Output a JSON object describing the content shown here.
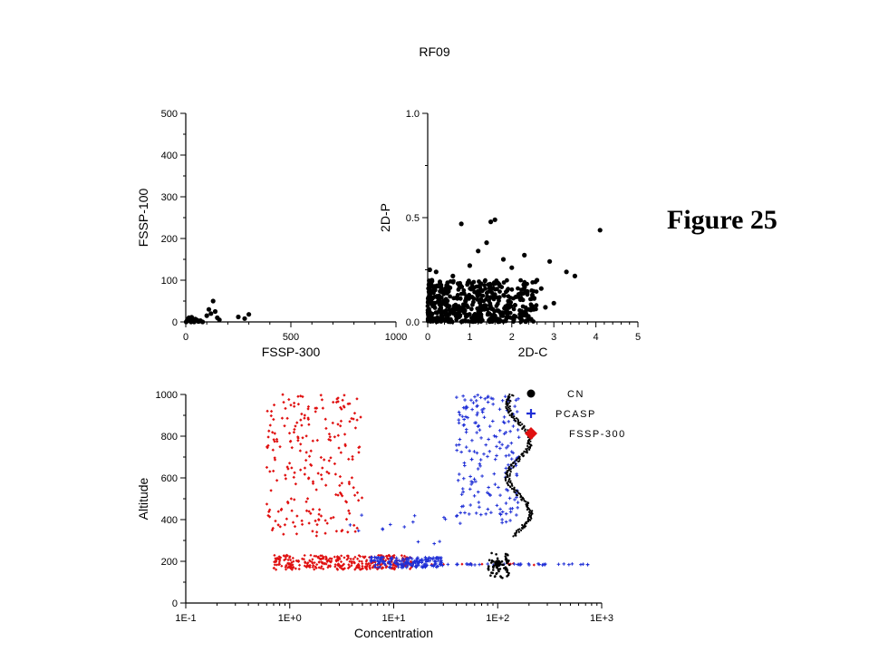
{
  "page": {
    "title": "RF09",
    "figure_label": "Figure 25"
  },
  "colors": {
    "cn": "#000000",
    "pcasp": "#1f2fd6",
    "fssp300": "#e01010",
    "axis": "#000000"
  },
  "chart_data": [
    {
      "id": "fssp",
      "type": "scatter",
      "xlabel": "FSSP-300",
      "ylabel": "FSSP-100",
      "xlim": [
        0,
        1000
      ],
      "ylim": [
        0,
        500
      ],
      "xticks": [
        0,
        500,
        1000
      ],
      "xtick_labels": [
        "0",
        "500",
        "1000"
      ],
      "yticks": [
        0,
        100,
        200,
        300,
        400,
        500
      ],
      "ytick_labels": [
        "0",
        "100",
        "200",
        "300",
        "400",
        "500"
      ],
      "series": [
        {
          "color": "#000000",
          "x": [
            2,
            5,
            8,
            12,
            15,
            20,
            25,
            30,
            35,
            40,
            45,
            55,
            60,
            70,
            80,
            100,
            110,
            120,
            130,
            140,
            150,
            160,
            250,
            280,
            300,
            18,
            28,
            38,
            48,
            65
          ],
          "y": [
            0,
            2,
            5,
            8,
            10,
            3,
            0,
            6,
            2,
            0,
            7,
            4,
            1,
            3,
            0,
            15,
            30,
            20,
            50,
            25,
            10,
            5,
            12,
            8,
            18,
            9,
            11,
            4,
            6,
            2
          ]
        }
      ]
    },
    {
      "id": "twod",
      "type": "scatter",
      "xlabel": "2D-C",
      "ylabel": "2D-P",
      "xlim": [
        0,
        5
      ],
      "ylim": [
        0,
        1
      ],
      "xticks": [
        0,
        1,
        2,
        3,
        4,
        5
      ],
      "xtick_labels": [
        "0",
        "1",
        "2",
        "3",
        "4",
        "5"
      ],
      "yticks": [
        0,
        0.5,
        1.0
      ],
      "ytick_labels": [
        "0.0",
        "0.5",
        "1.0"
      ],
      "series": [
        {
          "color": "#000000",
          "x": [
            0.8,
            1.5,
            1.6,
            4.1,
            1.4,
            1.2,
            1.8,
            2.3,
            2.9,
            3.3,
            3.5,
            2.6,
            2.0,
            1.7,
            0.6,
            0.2,
            0.1,
            0.4,
            1.0,
            2.1,
            2.7,
            1.9,
            3.0,
            0.9,
            1.3,
            2.4,
            0.05,
            0.3,
            0.7,
            1.1,
            2.8
          ],
          "y": [
            0.47,
            0.48,
            0.49,
            0.44,
            0.38,
            0.34,
            0.3,
            0.32,
            0.29,
            0.24,
            0.22,
            0.2,
            0.26,
            0.18,
            0.22,
            0.24,
            0.2,
            0.14,
            0.27,
            0.12,
            0.16,
            0.08,
            0.09,
            0.1,
            0.15,
            0.06,
            0.25,
            0.05,
            0.04,
            0.03,
            0.07
          ]
        },
        {
          "color": "#000000",
          "dense_cloud": {
            "x_min": 0.0,
            "x_max": 2.6,
            "y_min": 0.0,
            "y_max": 0.2,
            "count": 500
          }
        }
      ]
    },
    {
      "id": "profile",
      "type": "scatter",
      "xlabel": "Concentration",
      "ylabel": "Altitude",
      "xscale": "log",
      "xlim": [
        0.1,
        1000
      ],
      "ylim": [
        0,
        1000
      ],
      "xticks": [
        0.1,
        1,
        10,
        100,
        1000
      ],
      "xtick_labels": [
        "1E-1",
        "1E+0",
        "1E+1",
        "1E+2",
        "1E+3"
      ],
      "yticks": [
        0,
        200,
        400,
        600,
        800,
        1000
      ],
      "ytick_labels": [
        "0",
        "200",
        "400",
        "600",
        "800",
        "1000"
      ],
      "legend": {
        "placement": "top-right",
        "entries": [
          {
            "label": "CN",
            "marker": "circle",
            "color": "#000000"
          },
          {
            "label": "PCASP",
            "marker": "plus",
            "color": "#1f2fd6"
          },
          {
            "label": "FSSP-300",
            "marker": "diamond",
            "color": "#e01010"
          }
        ]
      },
      "series": [
        {
          "name": "CN",
          "color": "#000000",
          "altitude_range": [
            320,
            1000
          ],
          "concentration_range": [
            130,
            200
          ],
          "cluster_at_200": {
            "concentration_range": [
              80,
              130
            ],
            "altitude_range": [
              120,
              240
            ]
          }
        },
        {
          "name": "PCASP",
          "color": "#1f2fd6",
          "upper_range": {
            "altitude": [
              380,
              1000
            ],
            "concentration": [
              40,
              160
            ]
          },
          "mid_points": {
            "altitude": [
              280,
              430
            ],
            "concentration": [
              3,
              40
            ]
          },
          "band_200": {
            "altitude": [
              170,
              220
            ],
            "concentration": [
              6,
              30
            ]
          },
          "tail_200": {
            "altitude": 185,
            "concentration": [
              30,
              800
            ]
          }
        },
        {
          "name": "FSSP-300",
          "color": "#e01010",
          "upper_range": {
            "altitude": [
              320,
              1000
            ],
            "concentration": [
              0.6,
              5
            ]
          },
          "band_200": {
            "altitude": [
              160,
              230
            ],
            "concentration": [
              0.7,
              15
            ]
          },
          "tail_200": {
            "altitude": 185,
            "concentration": [
              20,
              260
            ]
          }
        }
      ]
    }
  ]
}
